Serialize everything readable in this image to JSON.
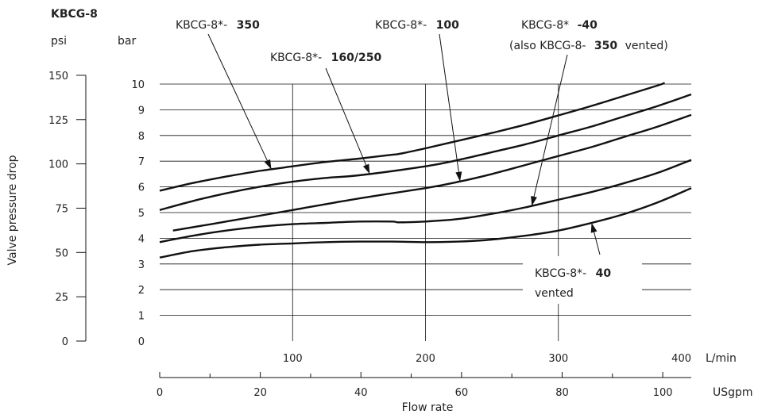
{
  "chart_data": {
    "type": "line",
    "model": "KBCG-8",
    "xlabel": "Flow rate",
    "ylabel": "Valve pressure drop",
    "x_units": [
      "L/min",
      "USgpm"
    ],
    "y_units": [
      "psi",
      "bar"
    ],
    "xlim_lpm": [
      0,
      400
    ],
    "ylim_bar": [
      0,
      10
    ],
    "x_ticks_lpm": [
      "100",
      "200",
      "300",
      "400"
    ],
    "x_ticks_usgpm": [
      "0",
      "20",
      "40",
      "60",
      "80",
      "100"
    ],
    "y_ticks_bar": [
      "0",
      "1",
      "2",
      "3",
      "4",
      "5",
      "6",
      "7",
      "8",
      "9",
      "10"
    ],
    "y_ticks_psi": [
      "0",
      "25",
      "50",
      "75",
      "100",
      "125",
      "150"
    ],
    "grid": true,
    "series": [
      {
        "id": "s350",
        "label_prefix": "KBCG-8*-",
        "label_bold": "350",
        "x": [
          0,
          25,
          50,
          75,
          100,
          125,
          150,
          175,
          180,
          200,
          225,
          250,
          275,
          300,
          325,
          350,
          375,
          380
        ],
        "y": [
          5.85,
          6.15,
          6.4,
          6.62,
          6.8,
          6.97,
          7.1,
          7.25,
          7.28,
          7.5,
          7.8,
          8.1,
          8.42,
          8.78,
          9.15,
          9.55,
          9.95,
          10.05
        ]
      },
      {
        "id": "s160",
        "label_prefix": "KBCG-8*-",
        "label_bold": "160/250",
        "x": [
          0,
          25,
          50,
          75,
          100,
          125,
          150,
          200,
          225,
          250,
          275,
          300,
          325,
          350,
          375,
          400
        ],
        "y": [
          5.1,
          5.45,
          5.75,
          6.0,
          6.2,
          6.35,
          6.45,
          6.8,
          7.05,
          7.35,
          7.65,
          8.0,
          8.35,
          8.75,
          9.15,
          9.6
        ]
      },
      {
        "id": "s100",
        "label_prefix": "KBCG-8*-",
        "label_bold": "100",
        "x": [
          10,
          50,
          100,
          150,
          200,
          225,
          250,
          275,
          300,
          325,
          350,
          375,
          400
        ],
        "y": [
          4.3,
          4.65,
          5.1,
          5.55,
          5.95,
          6.2,
          6.5,
          6.85,
          7.2,
          7.55,
          7.95,
          8.35,
          8.8
        ]
      },
      {
        "id": "s40",
        "label_prefix": "KBCG-8*",
        "label_bold": "-40",
        "label_note_prefix": "(also KBCG-8-",
        "label_note_bold": "350",
        "label_note_suffix": "vented)",
        "x": [
          0,
          25,
          50,
          75,
          100,
          125,
          150,
          175,
          180,
          200,
          225,
          250,
          275,
          300,
          325,
          350,
          375,
          400
        ],
        "y": [
          3.85,
          4.1,
          4.3,
          4.45,
          4.55,
          4.6,
          4.65,
          4.65,
          4.62,
          4.65,
          4.75,
          4.95,
          5.2,
          5.5,
          5.8,
          6.15,
          6.55,
          7.05
        ]
      },
      {
        "id": "s40v",
        "label_prefix": "KBCG-8*-",
        "label_bold": "40",
        "label_line2": "vented",
        "x": [
          0,
          25,
          50,
          75,
          100,
          125,
          150,
          175,
          200,
          225,
          250,
          275,
          300,
          325,
          350,
          375,
          400
        ],
        "y": [
          3.25,
          3.5,
          3.65,
          3.75,
          3.8,
          3.85,
          3.87,
          3.87,
          3.85,
          3.87,
          3.95,
          4.1,
          4.3,
          4.6,
          4.95,
          5.4,
          5.95
        ]
      }
    ]
  }
}
